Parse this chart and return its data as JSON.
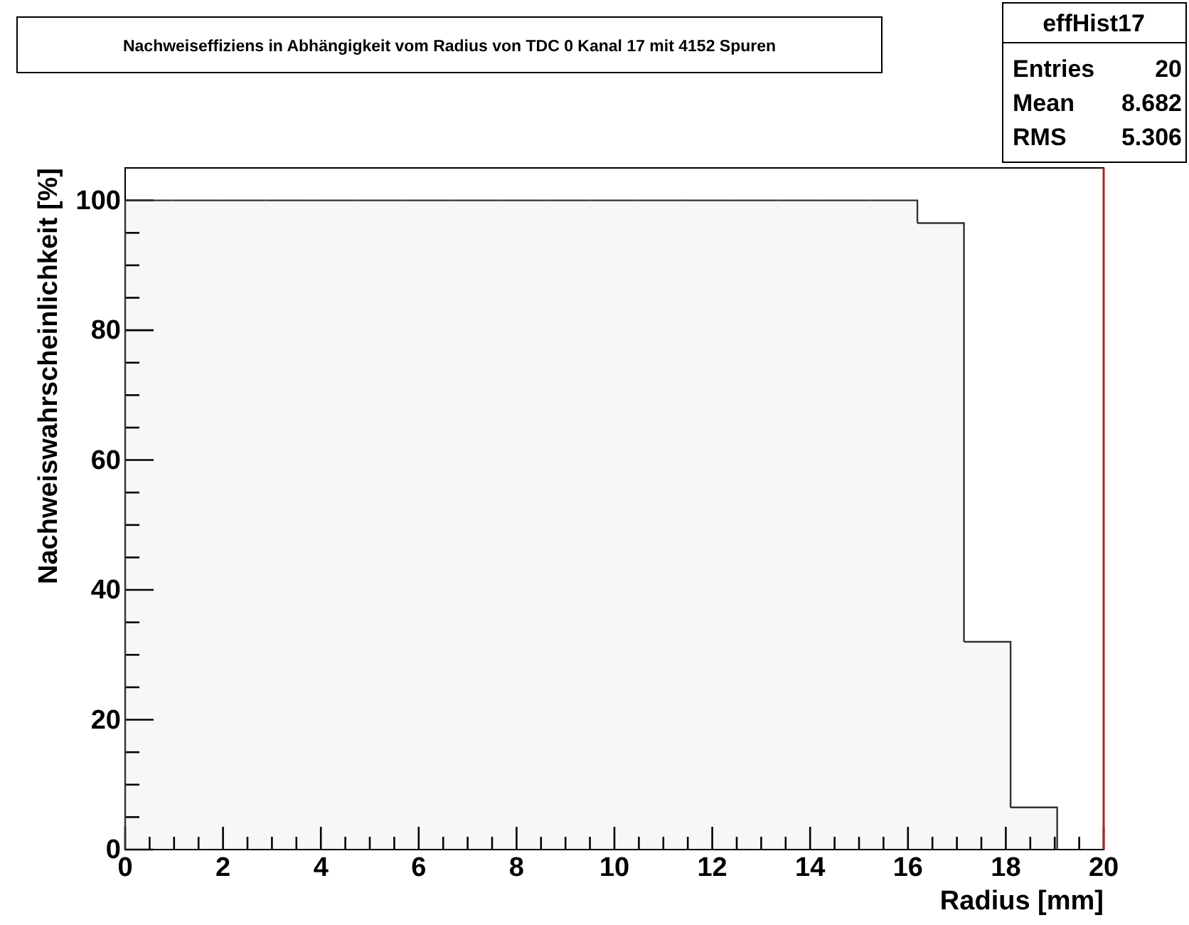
{
  "chart_data": {
    "type": "histogram",
    "title": "Nachweiseffiziens in Abhängigkeit vom Radius von TDC 0 Kanal 17 mit 4152 Spuren",
    "xlabel": "Radius [mm]",
    "ylabel": "Nachweiswahrscheinlichkeit [%]",
    "bins": [
      0,
      0.9525,
      1.905,
      2.8575,
      3.81,
      4.7625,
      5.715,
      6.6675,
      7.62,
      8.5725,
      9.525,
      10.4775,
      11.43,
      12.3825,
      13.335,
      14.2875,
      15.24,
      16.1925,
      17.145,
      18.0975,
      19.05
    ],
    "values": [
      100,
      100,
      100,
      100,
      100,
      100,
      100,
      100,
      100,
      100,
      100,
      100,
      100,
      100,
      100,
      100,
      100,
      96.5,
      32,
      6.5
    ],
    "color": "#333333",
    "xlim": [
      0,
      20
    ],
    "ylim": [
      0,
      105
    ],
    "xticks": [
      0,
      {
        "value": 0.5,
        "label": null
      },
      {
        "value": 1,
        "label": null
      },
      {
        "value": 1.5,
        "label": null
      },
      2,
      {
        "value": 2.5,
        "label": null
      },
      {
        "value": 3,
        "label": null
      },
      {
        "value": 3.5,
        "label": null
      },
      4,
      {
        "value": 4.5,
        "label": null
      },
      {
        "value": 5,
        "label": null
      },
      {
        "value": 5.5,
        "label": null
      },
      6,
      {
        "value": 6.5,
        "label": null
      },
      {
        "value": 7,
        "label": null
      },
      {
        "value": 7.5,
        "label": null
      },
      8,
      {
        "value": 8.5,
        "label": null
      },
      {
        "value": 9,
        "label": null
      },
      {
        "value": 9.5,
        "label": null
      },
      10,
      {
        "value": 10.5,
        "label": null
      },
      {
        "value": 11,
        "label": null
      },
      {
        "value": 11.5,
        "label": null
      },
      12,
      {
        "value": 12.5,
        "label": null
      },
      {
        "value": 13,
        "label": null
      },
      {
        "value": 13.5,
        "label": null
      },
      14,
      {
        "value": 14.5,
        "label": null
      },
      {
        "value": 15,
        "label": null
      },
      {
        "value": 15.5,
        "label": null
      },
      16,
      {
        "value": 16.5,
        "label": null
      },
      {
        "value": 17,
        "label": null
      },
      {
        "value": 17.5,
        "label": null
      },
      18,
      {
        "value": 18.5,
        "label": null
      },
      {
        "value": 19,
        "label": null
      },
      {
        "value": 19.5,
        "label": null
      },
      20
    ],
    "yticks": [
      0,
      {
        "value": 5,
        "label": null
      },
      {
        "value": 10,
        "label": null
      },
      {
        "value": 15,
        "label": null
      },
      20,
      {
        "value": 25,
        "label": null
      },
      {
        "value": 30,
        "label": null
      },
      {
        "value": 35,
        "label": null
      },
      40,
      {
        "value": 45,
        "label": null
      },
      {
        "value": 50,
        "label": null
      },
      {
        "value": 55,
        "label": null
      },
      60,
      {
        "value": 65,
        "label": null
      },
      {
        "value": 70,
        "label": null
      },
      {
        "value": 75,
        "label": null
      },
      80,
      {
        "value": 85,
        "label": null
      },
      {
        "value": 90,
        "label": null
      },
      {
        "value": 95,
        "label": null
      },
      100
    ],
    "ref_lines": [
      {
        "axis": "x",
        "value": 20,
        "color": "#b22222"
      }
    ],
    "annotations": [
      "effHist17",
      "Entries",
      "20",
      "Mean",
      "8.682",
      "RMS",
      "5.306"
    ],
    "grid": false
  }
}
